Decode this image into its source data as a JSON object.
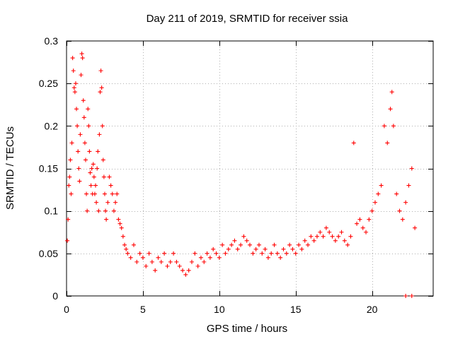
{
  "chart_data": {
    "type": "scatter",
    "title": "Day 211 of 2019, SRMTID for receiver ssia",
    "xlabel": "GPS time / hours",
    "ylabel": "SRMTID / TECUs",
    "xlim": [
      0,
      24
    ],
    "ylim": [
      0,
      0.3
    ],
    "xticks": [
      0,
      5,
      10,
      15,
      20
    ],
    "yticks": [
      0,
      0.05,
      0.1,
      0.15,
      0.2,
      0.25,
      0.3
    ],
    "xtick_labels": [
      "0",
      "5",
      "10",
      "15",
      "20"
    ],
    "ytick_labels": [
      "0",
      "0.05",
      "0.1",
      "0.15",
      "0.2",
      "0.25",
      "0.3"
    ],
    "grid": true,
    "marker": "plus",
    "color": "#ff0000",
    "series": [
      {
        "name": "SRMTID",
        "points": [
          [
            0.05,
            0.065
          ],
          [
            0.1,
            0.09
          ],
          [
            0.15,
            0.13
          ],
          [
            0.2,
            0.14
          ],
          [
            0.25,
            0.16
          ],
          [
            0.3,
            0.12
          ],
          [
            0.35,
            0.18
          ],
          [
            0.4,
            0.28
          ],
          [
            0.45,
            0.265
          ],
          [
            0.5,
            0.245
          ],
          [
            0.55,
            0.24
          ],
          [
            0.6,
            0.25
          ],
          [
            0.65,
            0.22
          ],
          [
            0.7,
            0.2
          ],
          [
            0.75,
            0.17
          ],
          [
            0.8,
            0.15
          ],
          [
            0.85,
            0.135
          ],
          [
            0.9,
            0.19
          ],
          [
            0.95,
            0.26
          ],
          [
            1.0,
            0.285
          ],
          [
            1.05,
            0.28
          ],
          [
            1.1,
            0.23
          ],
          [
            1.15,
            0.21
          ],
          [
            1.2,
            0.18
          ],
          [
            1.25,
            0.16
          ],
          [
            1.3,
            0.12
          ],
          [
            1.35,
            0.1
          ],
          [
            1.4,
            0.22
          ],
          [
            1.45,
            0.2
          ],
          [
            1.5,
            0.17
          ],
          [
            1.55,
            0.145
          ],
          [
            1.6,
            0.13
          ],
          [
            1.65,
            0.15
          ],
          [
            1.7,
            0.12
          ],
          [
            1.75,
            0.155
          ],
          [
            1.8,
            0.14
          ],
          [
            1.85,
            0.12
          ],
          [
            1.9,
            0.13
          ],
          [
            1.95,
            0.11
          ],
          [
            2.0,
            0.15
          ],
          [
            2.05,
            0.17
          ],
          [
            2.1,
            0.1
          ],
          [
            2.15,
            0.19
          ],
          [
            2.2,
            0.24
          ],
          [
            2.25,
            0.265
          ],
          [
            2.3,
            0.245
          ],
          [
            2.35,
            0.2
          ],
          [
            2.4,
            0.16
          ],
          [
            2.45,
            0.14
          ],
          [
            2.5,
            0.12
          ],
          [
            2.55,
            0.1
          ],
          [
            2.6,
            0.09
          ],
          [
            2.7,
            0.11
          ],
          [
            2.8,
            0.14
          ],
          [
            2.9,
            0.13
          ],
          [
            3.0,
            0.12
          ],
          [
            3.1,
            0.1
          ],
          [
            3.2,
            0.11
          ],
          [
            3.3,
            0.12
          ],
          [
            3.4,
            0.09
          ],
          [
            3.5,
            0.085
          ],
          [
            3.6,
            0.08
          ],
          [
            3.7,
            0.07
          ],
          [
            3.8,
            0.06
          ],
          [
            3.9,
            0.055
          ],
          [
            4.0,
            0.05
          ],
          [
            4.2,
            0.045
          ],
          [
            4.4,
            0.06
          ],
          [
            4.6,
            0.04
          ],
          [
            4.8,
            0.05
          ],
          [
            5.0,
            0.045
          ],
          [
            5.2,
            0.035
          ],
          [
            5.4,
            0.05
          ],
          [
            5.6,
            0.04
          ],
          [
            5.8,
            0.03
          ],
          [
            6.0,
            0.045
          ],
          [
            6.2,
            0.04
          ],
          [
            6.4,
            0.05
          ],
          [
            6.6,
            0.035
          ],
          [
            6.8,
            0.04
          ],
          [
            7.0,
            0.05
          ],
          [
            7.2,
            0.04
          ],
          [
            7.4,
            0.035
          ],
          [
            7.6,
            0.03
          ],
          [
            7.8,
            0.025
          ],
          [
            8.0,
            0.03
          ],
          [
            8.2,
            0.04
          ],
          [
            8.4,
            0.05
          ],
          [
            8.6,
            0.035
          ],
          [
            8.8,
            0.045
          ],
          [
            9.0,
            0.04
          ],
          [
            9.2,
            0.05
          ],
          [
            9.4,
            0.045
          ],
          [
            9.6,
            0.055
          ],
          [
            9.8,
            0.05
          ],
          [
            10.0,
            0.045
          ],
          [
            10.2,
            0.06
          ],
          [
            10.4,
            0.05
          ],
          [
            10.6,
            0.055
          ],
          [
            10.8,
            0.06
          ],
          [
            11.0,
            0.065
          ],
          [
            11.2,
            0.055
          ],
          [
            11.4,
            0.06
          ],
          [
            11.6,
            0.07
          ],
          [
            11.8,
            0.065
          ],
          [
            12.0,
            0.06
          ],
          [
            12.2,
            0.05
          ],
          [
            12.4,
            0.055
          ],
          [
            12.6,
            0.06
          ],
          [
            12.8,
            0.05
          ],
          [
            13.0,
            0.055
          ],
          [
            13.2,
            0.045
          ],
          [
            13.4,
            0.05
          ],
          [
            13.6,
            0.06
          ],
          [
            13.8,
            0.05
          ],
          [
            14.0,
            0.045
          ],
          [
            14.2,
            0.055
          ],
          [
            14.4,
            0.05
          ],
          [
            14.6,
            0.06
          ],
          [
            14.8,
            0.055
          ],
          [
            15.0,
            0.05
          ],
          [
            15.2,
            0.06
          ],
          [
            15.4,
            0.055
          ],
          [
            15.6,
            0.065
          ],
          [
            15.8,
            0.06
          ],
          [
            16.0,
            0.07
          ],
          [
            16.2,
            0.065
          ],
          [
            16.4,
            0.07
          ],
          [
            16.6,
            0.075
          ],
          [
            16.8,
            0.07
          ],
          [
            17.0,
            0.08
          ],
          [
            17.2,
            0.075
          ],
          [
            17.4,
            0.07
          ],
          [
            17.6,
            0.065
          ],
          [
            17.8,
            0.07
          ],
          [
            18.0,
            0.075
          ],
          [
            18.2,
            0.065
          ],
          [
            18.4,
            0.06
          ],
          [
            18.6,
            0.07
          ],
          [
            18.8,
            0.18
          ],
          [
            19.0,
            0.085
          ],
          [
            19.2,
            0.09
          ],
          [
            19.4,
            0.08
          ],
          [
            19.6,
            0.075
          ],
          [
            19.8,
            0.09
          ],
          [
            20.0,
            0.1
          ],
          [
            20.2,
            0.11
          ],
          [
            20.4,
            0.12
          ],
          [
            20.6,
            0.13
          ],
          [
            20.8,
            0.2
          ],
          [
            21.0,
            0.18
          ],
          [
            21.2,
            0.22
          ],
          [
            21.3,
            0.24
          ],
          [
            21.4,
            0.2
          ],
          [
            21.6,
            0.12
          ],
          [
            21.8,
            0.1
          ],
          [
            22.0,
            0.09
          ],
          [
            22.2,
            0.11
          ],
          [
            22.4,
            0.13
          ],
          [
            22.6,
            0.15
          ],
          [
            22.8,
            0.08
          ],
          [
            22.2,
            0.0
          ],
          [
            22.6,
            0.0
          ]
        ]
      }
    ]
  }
}
